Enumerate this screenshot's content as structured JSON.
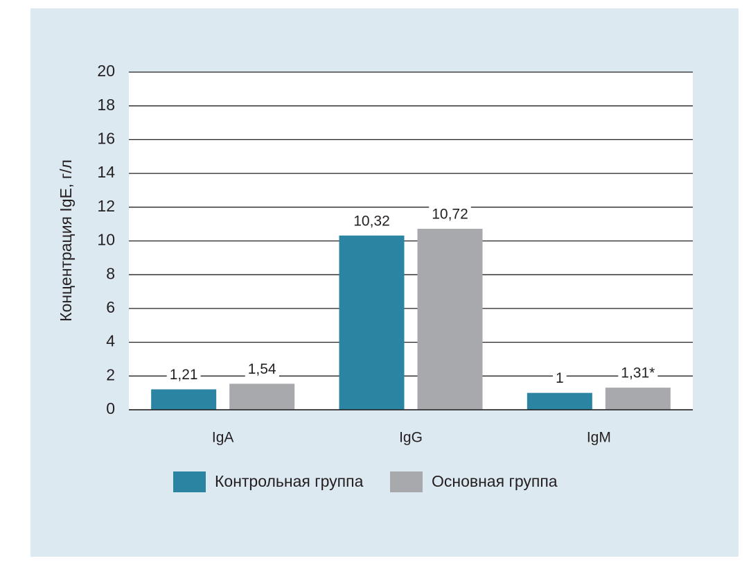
{
  "chart_data": {
    "type": "bar",
    "y_label": "Концентрация IgE, г/л",
    "categories": [
      "IgA",
      "IgG",
      "IgM"
    ],
    "series": [
      {
        "name": "Контрольная группа",
        "color": "#2a84a2",
        "values": [
          1.21,
          10.32,
          1
        ],
        "value_labels": [
          "1,21",
          "10,32",
          "1"
        ]
      },
      {
        "name": "Основная группа",
        "color": "#a8a9ad",
        "values": [
          1.54,
          10.72,
          1.31
        ],
        "value_labels": [
          "1,54",
          "10,72",
          "1,31*"
        ]
      }
    ],
    "ylim": [
      0,
      20
    ],
    "yticks": [
      0,
      2,
      4,
      6,
      8,
      10,
      12,
      14,
      16,
      18,
      20
    ],
    "grid": true
  }
}
